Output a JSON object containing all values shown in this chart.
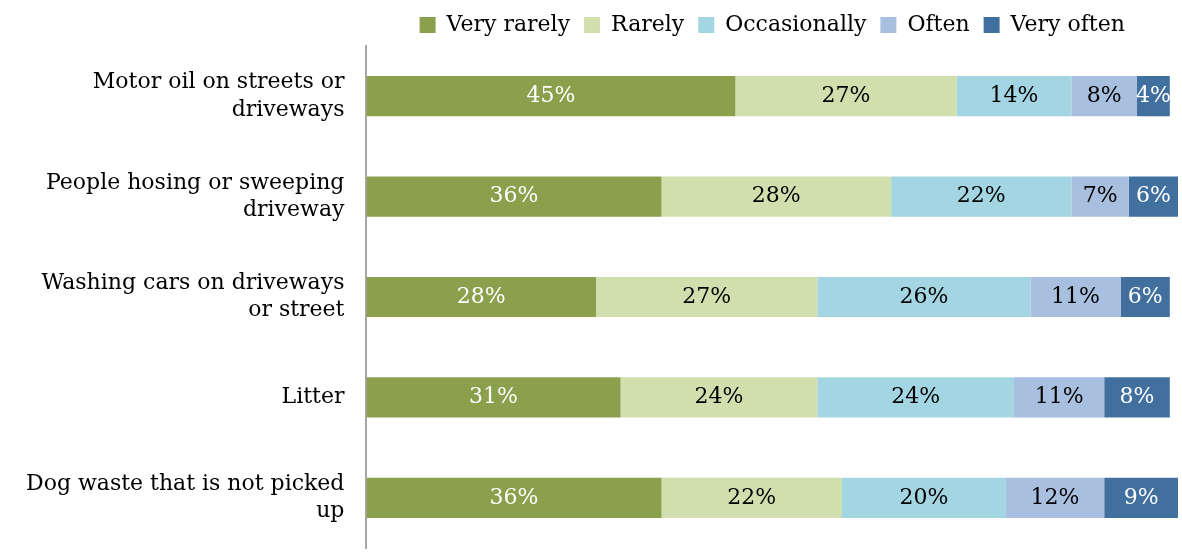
{
  "chart_data": {
    "type": "bar",
    "orientation": "horizontal",
    "stacked": true,
    "categories": [
      "Motor oil on streets or driveways",
      "People hosing or sweeping driveway",
      "Washing cars on driveways or street",
      "Litter",
      "Dog waste that is not picked up"
    ],
    "series": [
      {
        "name": "Very rarely",
        "color": "#8aa04c",
        "values": [
          45,
          36,
          28,
          31,
          36
        ],
        "value_labels": [
          "45%",
          "36%",
          "28%",
          "31%",
          "36%"
        ]
      },
      {
        "name": "Rarely",
        "color": "#d1dfae",
        "values": [
          27,
          28,
          27,
          24,
          22
        ],
        "value_labels": [
          "27%",
          "28%",
          "27%",
          "24%",
          "22%"
        ]
      },
      {
        "name": "Occasionally",
        "color": "#a3d6e2",
        "values": [
          14,
          22,
          26,
          24,
          20
        ],
        "value_labels": [
          "14%",
          "22%",
          "26%",
          "24%",
          "20%"
        ]
      },
      {
        "name": "Often",
        "color": "#a8bfdf",
        "values": [
          8,
          7,
          11,
          11,
          12
        ],
        "value_labels": [
          "8%",
          "7%",
          "11%",
          "11%",
          "12%"
        ]
      },
      {
        "name": "Very often",
        "color": "#41709f",
        "values": [
          4,
          6,
          6,
          8,
          9
        ],
        "value_labels": [
          "4%",
          "6%",
          "6%",
          "8%",
          "9%"
        ]
      }
    ],
    "legend": "top",
    "grid": false,
    "tick_labels": "y"
  }
}
